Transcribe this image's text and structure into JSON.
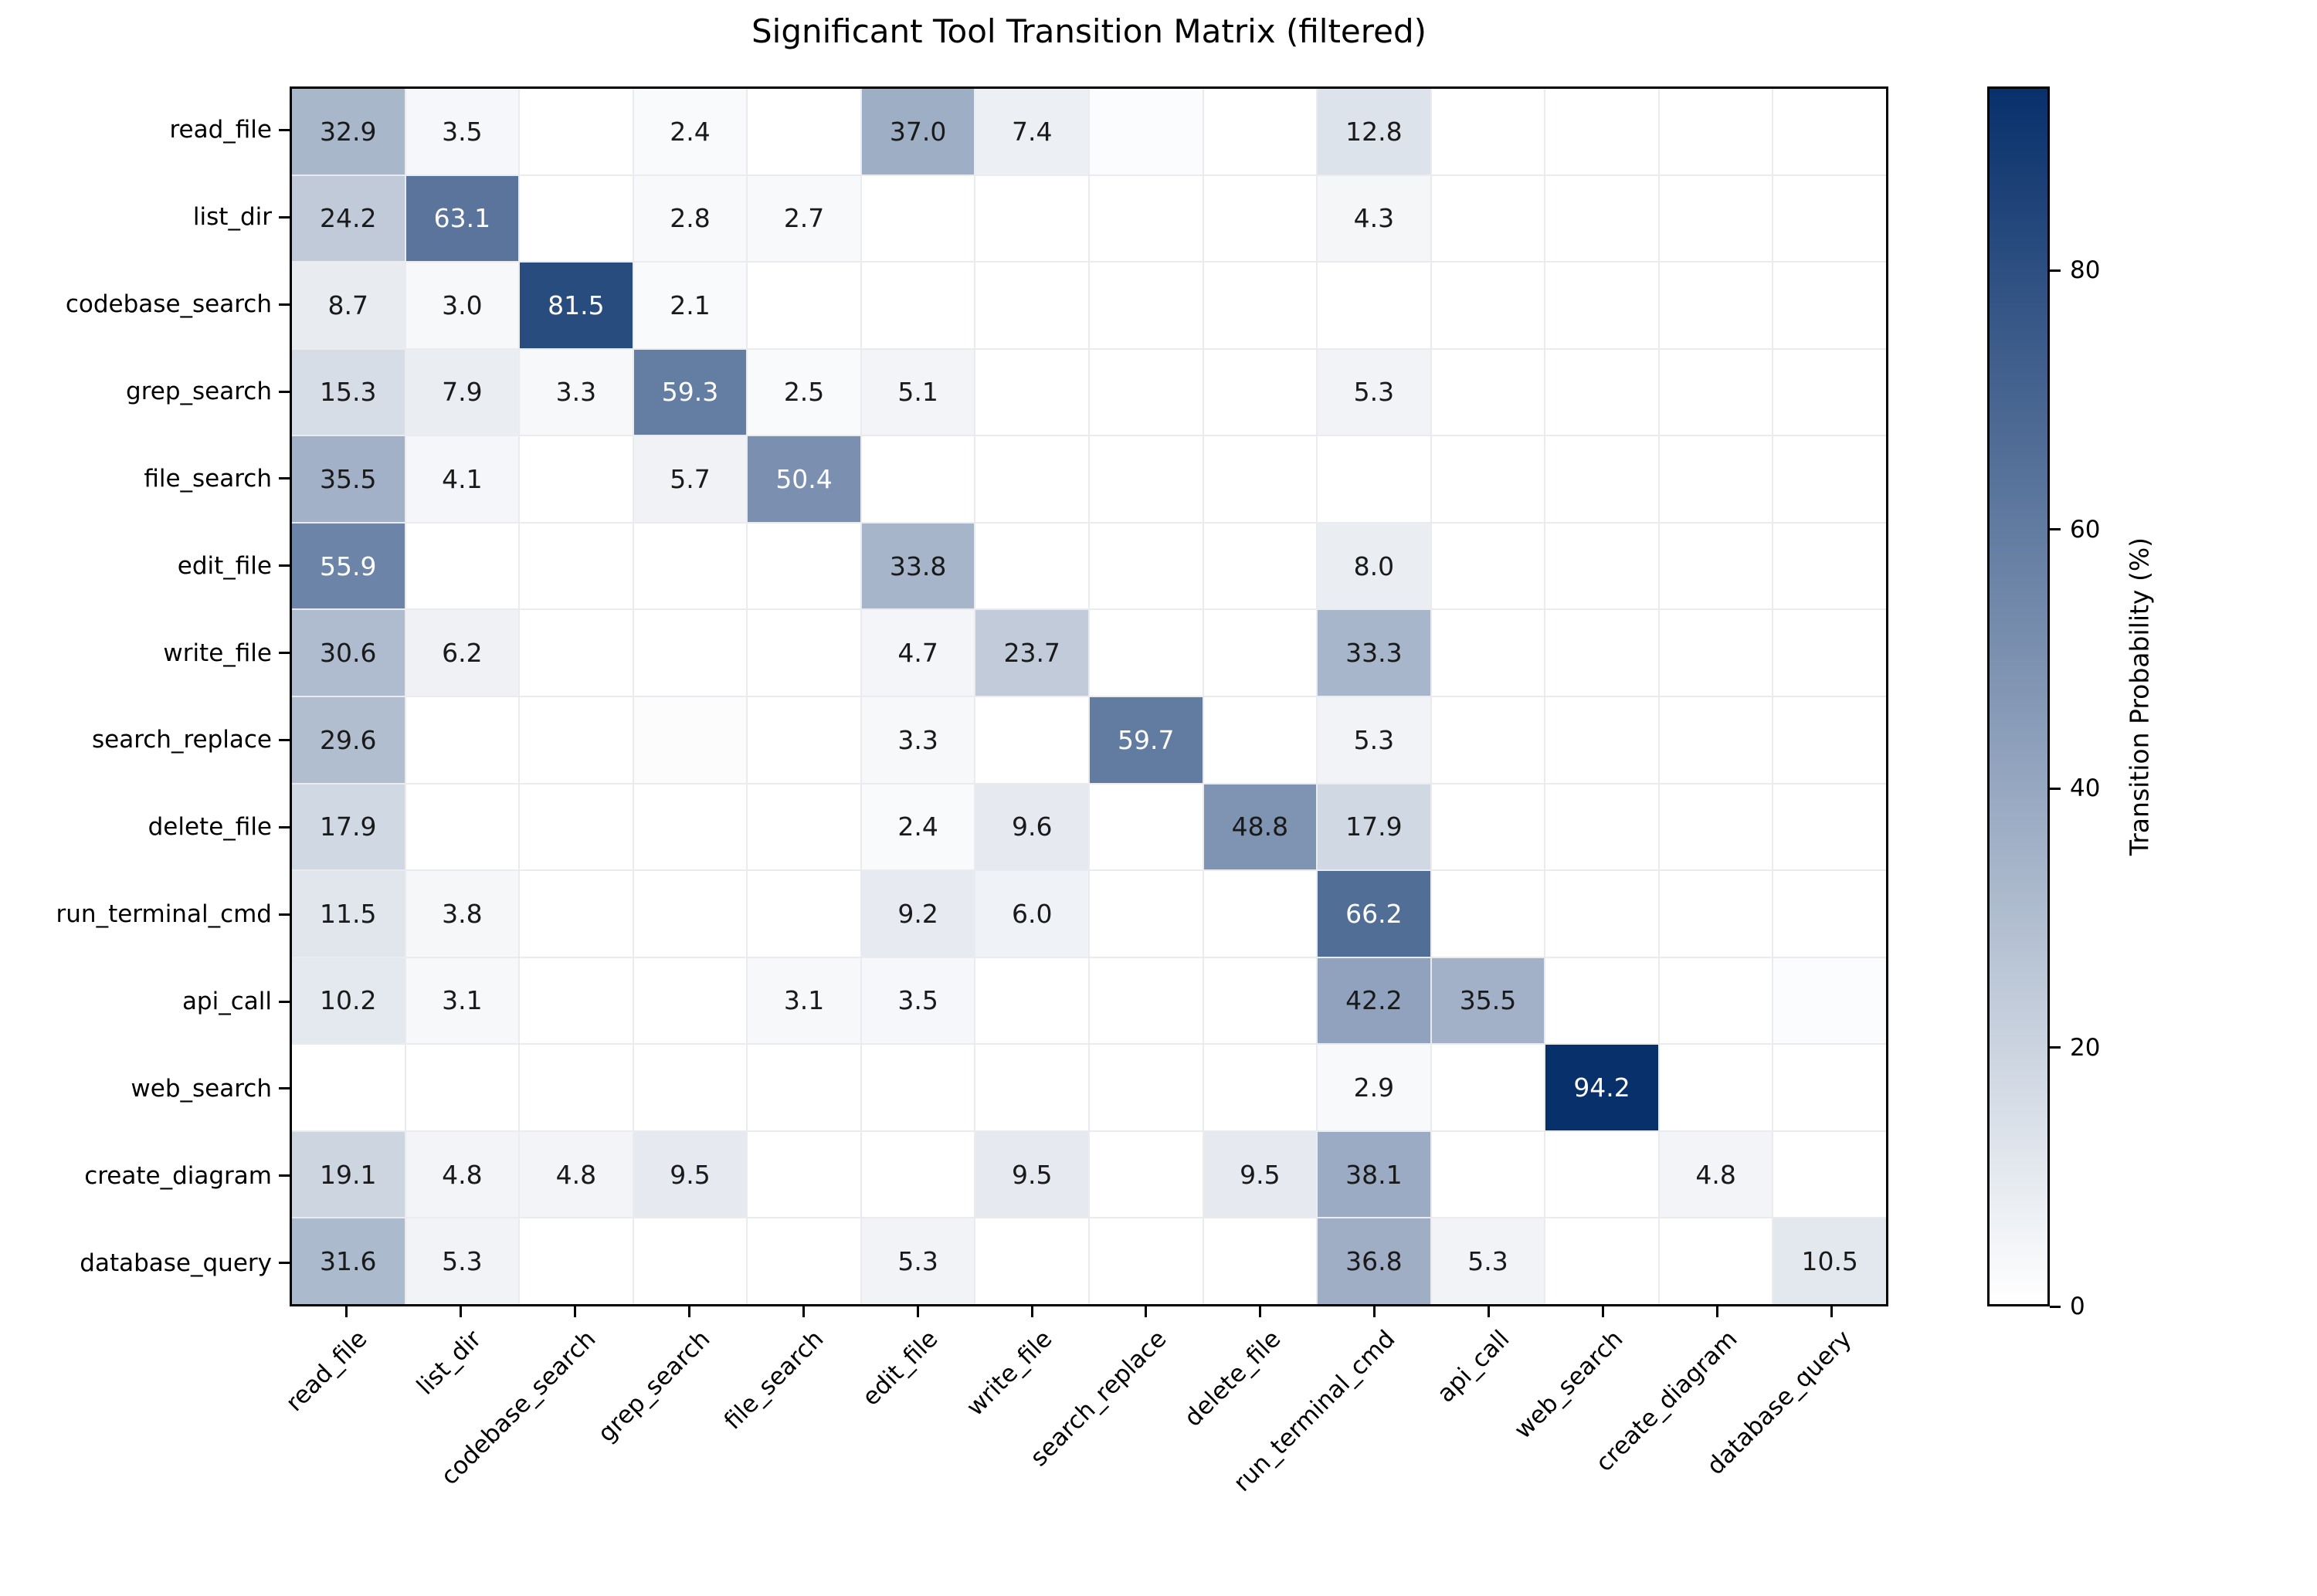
{
  "chart_data": {
    "type": "heatmap",
    "title": "Significant Tool Transition Matrix (filtered)",
    "labels": [
      "read_file",
      "list_dir",
      "codebase_search",
      "grep_search",
      "file_search",
      "edit_file",
      "write_file",
      "search_replace",
      "delete_file",
      "run_terminal_cmd",
      "api_call",
      "web_search",
      "create_diagram",
      "database_query"
    ],
    "x_labels": [
      "read_file",
      "list_dir",
      "codebase_search",
      "grep_search",
      "file_search",
      "edit_file",
      "write_file",
      "search_replace",
      "delete_file",
      "run_terminal_cmd",
      "api_call",
      "web_search",
      "create_diagram",
      "database_query"
    ],
    "y_labels": [
      "read_file",
      "list_dir",
      "codebase_search",
      "grep_search",
      "file_search",
      "edit_file",
      "write_file",
      "search_replace",
      "delete_file",
      "run_terminal_cmd",
      "api_call",
      "web_search",
      "create_diagram",
      "database_query"
    ],
    "matrix": [
      [
        32.9,
        3.5,
        null,
        2.4,
        null,
        37.0,
        7.4,
        1.5,
        null,
        12.8,
        null,
        null,
        null,
        null
      ],
      [
        24.2,
        63.1,
        null,
        2.8,
        2.7,
        null,
        null,
        null,
        null,
        4.3,
        null,
        null,
        null,
        null
      ],
      [
        8.7,
        3.0,
        81.5,
        2.1,
        null,
        null,
        null,
        null,
        null,
        null,
        null,
        null,
        null,
        null
      ],
      [
        15.3,
        7.9,
        3.3,
        59.3,
        2.5,
        5.1,
        null,
        null,
        null,
        5.3,
        null,
        null,
        null,
        null
      ],
      [
        35.5,
        4.1,
        null,
        5.7,
        50.4,
        null,
        null,
        null,
        null,
        null,
        null,
        null,
        null,
        null
      ],
      [
        55.9,
        null,
        null,
        null,
        null,
        33.8,
        null,
        null,
        null,
        8.0,
        null,
        null,
        null,
        null
      ],
      [
        30.6,
        6.2,
        null,
        null,
        null,
        4.7,
        23.7,
        null,
        null,
        33.3,
        null,
        null,
        null,
        null
      ],
      [
        29.6,
        null,
        null,
        1.2,
        null,
        3.3,
        null,
        59.7,
        null,
        5.3,
        null,
        null,
        null,
        null
      ],
      [
        17.9,
        null,
        null,
        null,
        null,
        2.4,
        9.6,
        null,
        48.8,
        17.9,
        null,
        null,
        null,
        null
      ],
      [
        11.5,
        3.8,
        null,
        null,
        null,
        9.2,
        6.0,
        null,
        null,
        66.2,
        null,
        null,
        null,
        null
      ],
      [
        10.2,
        3.1,
        null,
        null,
        3.1,
        3.5,
        null,
        null,
        null,
        42.2,
        35.5,
        null,
        null,
        1.5
      ],
      [
        null,
        null,
        null,
        null,
        null,
        null,
        null,
        null,
        null,
        2.9,
        null,
        94.2,
        null,
        null
      ],
      [
        19.1,
        4.8,
        4.8,
        9.5,
        null,
        null,
        9.5,
        null,
        9.5,
        38.1,
        null,
        null,
        4.8,
        null
      ],
      [
        31.6,
        5.3,
        null,
        null,
        null,
        5.3,
        null,
        null,
        null,
        36.8,
        5.3,
        null,
        null,
        10.5
      ]
    ],
    "value_format": "1_decimal",
    "annotation_threshold": 2.0,
    "white_text_min": 50,
    "vmin": 0,
    "vmax": 94.2,
    "colormap": {
      "low": "#ffffff",
      "high": "#08306b"
    },
    "text_color_dark_cells": "#ffffff",
    "text_color_light_cells": "#1a1a1a",
    "grid_on": true,
    "colorbar_label": "Transition Probability (%)",
    "colorbar_ticks": [
      0,
      20,
      40,
      60,
      80
    ],
    "legend_position": "right-colorbar"
  }
}
